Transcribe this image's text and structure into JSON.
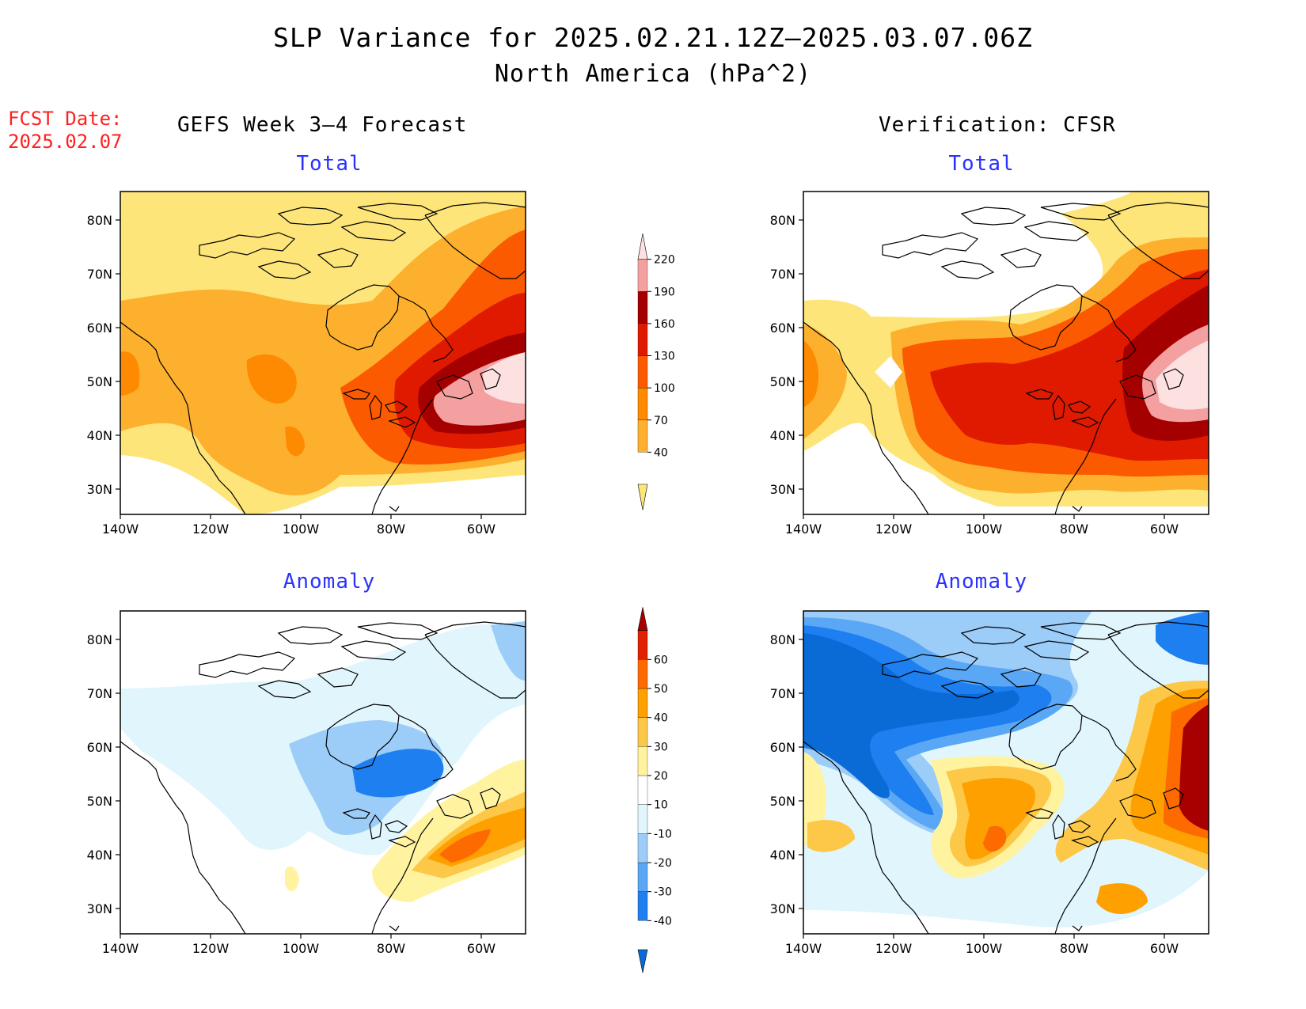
{
  "title": {
    "line1": "SLP Variance for 2025.02.21.12Z–2025.03.07.06Z",
    "line2": "North America (hPa^2)"
  },
  "fcst_date": {
    "label": "FCST Date:",
    "value": "2025.02.07"
  },
  "columns": {
    "left": "GEFS Week 3–4 Forecast",
    "right": "Verification: CFSR"
  },
  "panels": {
    "forecast_total": {
      "title": "Total"
    },
    "forecast_anomaly": {
      "title": "Anomaly"
    },
    "verification_total": {
      "title": "Total"
    },
    "verification_anomaly": {
      "title": "Anomaly"
    }
  },
  "axes": {
    "lat_labels": [
      "80N",
      "70N",
      "60N",
      "50N",
      "40N",
      "30N"
    ],
    "lon_labels": [
      "140W",
      "120W",
      "100W",
      "80W",
      "60W"
    ]
  },
  "colorbars": {
    "total": {
      "levels": [
        "40",
        "70",
        "100",
        "130",
        "160",
        "190",
        "220"
      ],
      "colors": [
        "#fde57a",
        "#fdb02e",
        "#fd8a00",
        "#fc5a00",
        "#e01a00",
        "#a40000",
        "#f4a0a0",
        "#fde0e0"
      ]
    },
    "anomaly": {
      "levels": [
        "-40",
        "-30",
        "-20",
        "-10",
        "10",
        "20",
        "30",
        "40",
        "50",
        "60"
      ],
      "colors": [
        "#0a6ad6",
        "#1e7ff0",
        "#5aa8f5",
        "#9cccf8",
        "#e0f6fc",
        "#ffffff",
        "#fff3a0",
        "#fdc848",
        "#fda000",
        "#fc6a00",
        "#e02000",
        "#a80000"
      ]
    }
  }
}
